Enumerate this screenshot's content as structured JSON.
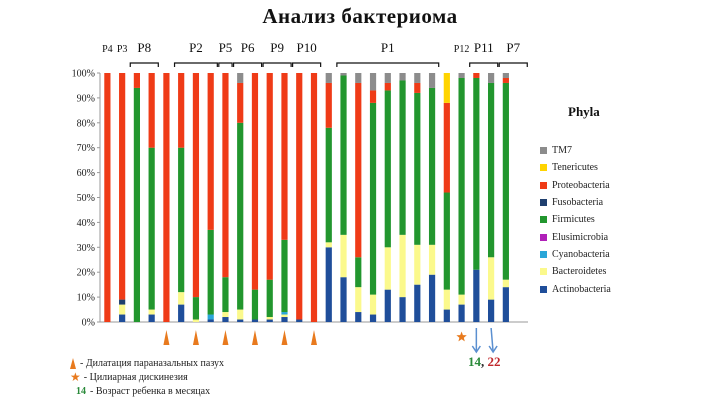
{
  "title": "Анализ бактериома",
  "legend": {
    "title": "Phyla",
    "items": [
      {
        "label": "TM7",
        "color": "#8c8c8c"
      },
      {
        "label": "Tenericutes",
        "color": "#ffd400"
      },
      {
        "label": "Proteobacteria",
        "color": "#ef3b17"
      },
      {
        "label": "Fusobacteria",
        "color": "#1f3f6e"
      },
      {
        "label": "Firmicutes",
        "color": "#22962e"
      },
      {
        "label": "Elusimicrobia",
        "color": "#b020b8"
      },
      {
        "label": "Cyanobacteria",
        "color": "#2aa6d8"
      },
      {
        "label": "Bacteroidetes",
        "color": "#fbf98c"
      },
      {
        "label": "Actinobacteria",
        "color": "#1f4e9a"
      }
    ]
  },
  "groups": [
    {
      "label": "P4",
      "from": 0,
      "to": 0,
      "bracket": false
    },
    {
      "label": "P3",
      "from": 1,
      "to": 1,
      "bracket": false
    },
    {
      "label": "P8",
      "from": 2,
      "to": 3,
      "bracket": true
    },
    {
      "label": "P2",
      "from": 5,
      "to": 7,
      "bracket": true
    },
    {
      "label": "P5",
      "from": 8,
      "to": 8,
      "bracket": true
    },
    {
      "label": "P6",
      "from": 9,
      "to": 10,
      "bracket": true
    },
    {
      "label": "P9",
      "from": 11,
      "to": 12,
      "bracket": true
    },
    {
      "label": "P10",
      "from": 13,
      "to": 14,
      "bracket": true
    },
    {
      "label": "P1",
      "from": 16,
      "to": 22,
      "bracket": true
    },
    {
      "label": "P12",
      "from": 24,
      "to": 24,
      "bracket": false
    },
    {
      "label": "P11",
      "from": 25,
      "to": 26,
      "bracket": true
    },
    {
      "label": "P7",
      "from": 27,
      "to": 28,
      "bracket": true
    }
  ],
  "markers": {
    "cones": [
      4,
      6,
      8,
      10,
      12,
      14
    ],
    "star": 24,
    "arrows": [
      25,
      26
    ]
  },
  "notes": {
    "cone_text": "- Дилатация параназальных пазух",
    "star_text": "- Цилиарная дискинезия",
    "age_num": "14",
    "age_text": "- Возраст ребенка в месяцах"
  },
  "ages": {
    "first": "14",
    "separator": ",",
    "second": "22"
  },
  "chart_data": {
    "type": "bar",
    "stacked": true,
    "title": "Анализ бактериома",
    "ylim": [
      0,
      100
    ],
    "yticks": [
      "0%",
      "10%",
      "20%",
      "30%",
      "40%",
      "50%",
      "60%",
      "70%",
      "80%",
      "90%",
      "100%"
    ],
    "n_bars": 29,
    "series": [
      {
        "name": "Actinobacteria",
        "values": [
          0,
          3,
          0,
          3,
          0,
          7,
          0,
          1,
          2,
          1,
          1,
          1,
          2,
          1,
          0,
          30,
          18,
          4,
          3,
          13,
          10,
          15,
          19,
          5,
          7,
          21,
          9,
          14,
          0
        ]
      },
      {
        "name": "Bacteroidetes",
        "values": [
          0,
          4,
          0,
          2,
          0,
          5,
          1,
          0,
          2,
          4,
          0,
          1,
          1,
          0,
          0,
          2,
          17,
          10,
          8,
          17,
          25,
          16,
          12,
          8,
          4,
          0,
          17,
          3,
          0
        ]
      },
      {
        "name": "Cyanobacteria",
        "values": [
          0,
          0,
          0,
          0,
          0,
          0,
          0,
          2,
          0,
          0,
          0,
          0,
          1,
          0,
          0,
          0,
          0,
          0,
          0,
          0,
          0,
          0,
          0,
          0,
          0,
          0,
          0,
          0,
          0
        ]
      },
      {
        "name": "Elusimicrobia",
        "values": [
          0,
          0,
          0,
          0,
          0,
          0,
          0,
          0,
          0,
          0,
          0,
          0,
          0,
          0,
          0,
          0,
          0,
          0,
          0,
          0,
          0,
          0,
          0,
          0,
          0,
          0,
          0,
          0,
          0
        ]
      },
      {
        "name": "Firmicutes",
        "values": [
          0,
          0,
          94,
          65,
          0,
          58,
          9,
          34,
          14,
          75,
          12,
          15,
          29,
          0,
          0,
          46,
          64,
          12,
          77,
          63,
          62,
          61,
          63,
          39,
          87,
          77,
          70,
          79,
          0
        ]
      },
      {
        "name": "Fusobacteria",
        "values": [
          0,
          2,
          0,
          0,
          0,
          0,
          0,
          0,
          0,
          0,
          0,
          0,
          0,
          0,
          0,
          0,
          0,
          0,
          0,
          0,
          0,
          0,
          0,
          0,
          0,
          0,
          0,
          0,
          0
        ]
      },
      {
        "name": "Proteobacteria",
        "values": [
          100,
          91,
          6,
          30,
          100,
          30,
          90,
          63,
          82,
          16,
          87,
          83,
          67,
          99,
          100,
          18,
          0,
          70,
          5,
          3,
          0,
          4,
          0,
          36,
          0,
          2,
          0,
          2,
          0
        ]
      },
      {
        "name": "Tenericutes",
        "values": [
          0,
          0,
          0,
          0,
          0,
          0,
          0,
          0,
          0,
          0,
          0,
          0,
          0,
          0,
          0,
          0,
          0,
          0,
          0,
          0,
          0,
          0,
          0,
          12,
          0,
          0,
          0,
          0,
          0
        ]
      },
      {
        "name": "TM7",
        "values": [
          0,
          0,
          0,
          0,
          0,
          0,
          0,
          0,
          0,
          4,
          0,
          0,
          0,
          0,
          0,
          4,
          1,
          4,
          7,
          4,
          3,
          4,
          6,
          0,
          2,
          0,
          4,
          2,
          0
        ]
      }
    ]
  }
}
